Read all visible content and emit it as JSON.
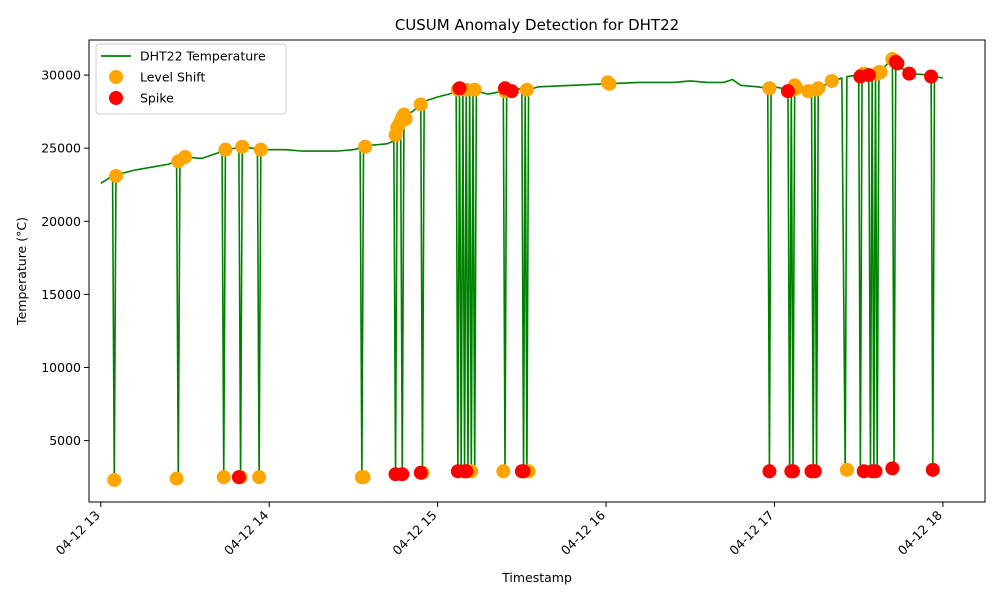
{
  "chart_data": {
    "type": "line",
    "title": "CUSUM Anomaly Detection for DHT22",
    "xlabel": "Timestamp",
    "ylabel": "Temperature (°C)",
    "x_ticks": [
      "04-12 13",
      "04-12 14",
      "04-12 15",
      "04-12 16",
      "04-12 17",
      "04-12 18"
    ],
    "y_ticks": [
      5000,
      10000,
      15000,
      20000,
      25000,
      30000
    ],
    "xlim_hours": [
      12.93,
      18.25
    ],
    "ylim": [
      800,
      32400
    ],
    "grid": false,
    "legend_position": "top-left",
    "legend": {
      "line_label": "DHT22 Temperature",
      "level_shift_label": "Level Shift",
      "spike_label": "Spike"
    },
    "colors": {
      "line": "#008000",
      "level_shift": "#ffa500",
      "spike": "#ff0000"
    },
    "temperature_series": {
      "name": "DHT22 Temperature",
      "hours": [
        13.0,
        13.07,
        13.08,
        13.09,
        13.1,
        13.2,
        13.3,
        13.4,
        13.45,
        13.46,
        13.47,
        13.5,
        13.6,
        13.7,
        13.72,
        13.73,
        13.74,
        13.8,
        13.82,
        13.83,
        13.84,
        13.9,
        13.93,
        13.94,
        13.95,
        14.0,
        14.1,
        14.2,
        14.3,
        14.4,
        14.5,
        14.54,
        14.55,
        14.56,
        14.6,
        14.7,
        14.74,
        14.75,
        14.76,
        14.78,
        14.79,
        14.8,
        14.85,
        14.9,
        14.91,
        14.92,
        15.0,
        15.1,
        15.11,
        15.12,
        15.13,
        15.14,
        15.15,
        15.16,
        15.17,
        15.18,
        15.19,
        15.2,
        15.21,
        15.22,
        15.23,
        15.3,
        15.39,
        15.4,
        15.41,
        15.44,
        15.5,
        15.51,
        15.52,
        15.53,
        15.54,
        15.6,
        15.8,
        16.0,
        16.2,
        16.4,
        16.5,
        16.6,
        16.7,
        16.75,
        16.8,
        16.9,
        16.96,
        16.97,
        16.98,
        17.0,
        17.08,
        17.09,
        17.1,
        17.11,
        17.12,
        17.2,
        17.22,
        17.23,
        17.24,
        17.25,
        17.26,
        17.35,
        17.4,
        17.42,
        17.43,
        17.5,
        17.51,
        17.52,
        17.53,
        17.56,
        17.57,
        17.58,
        17.59,
        17.6,
        17.61,
        17.62,
        17.7,
        17.71,
        17.72,
        17.73,
        17.8,
        17.93,
        17.94,
        17.95,
        18.0
      ],
      "values": [
        22600,
        23100,
        2300,
        23100,
        23200,
        23500,
        23700,
        23900,
        24100,
        2400,
        24200,
        24400,
        24300,
        24700,
        24900,
        2500,
        24900,
        25000,
        25100,
        2500,
        25100,
        25000,
        24900,
        2500,
        24900,
        24900,
        24900,
        24800,
        24800,
        24800,
        24900,
        25000,
        2500,
        25100,
        25200,
        25300,
        25500,
        2700,
        26500,
        27300,
        2700,
        27200,
        27500,
        28000,
        2800,
        28200,
        28500,
        28800,
        28700,
        2900,
        29000,
        2900,
        29100,
        2900,
        29100,
        2900,
        28900,
        2900,
        28900,
        2900,
        28900,
        28700,
        28900,
        2900,
        28900,
        28900,
        29100,
        2900,
        29000,
        2900,
        29000,
        29200,
        29300,
        29400,
        29500,
        29500,
        29600,
        29500,
        29500,
        29700,
        29300,
        29200,
        29100,
        2900,
        29100,
        29200,
        29000,
        2900,
        29100,
        2900,
        29200,
        29000,
        29000,
        2900,
        29000,
        2900,
        29100,
        29600,
        29800,
        3000,
        29900,
        30000,
        3000,
        30000,
        29900,
        30000,
        3000,
        30100,
        3000,
        30100,
        3000,
        30200,
        31100,
        3100,
        30900,
        30700,
        30100,
        30000,
        3000,
        29900,
        29800
      ]
    },
    "level_shift_points": {
      "name": "Level Shift",
      "hours": [
        13.08,
        13.09,
        13.45,
        13.46,
        13.5,
        13.73,
        13.74,
        13.83,
        13.84,
        13.94,
        13.95,
        14.55,
        14.56,
        14.57,
        14.75,
        14.76,
        14.77,
        14.78,
        14.79,
        14.8,
        14.81,
        14.9,
        14.91,
        15.12,
        15.17,
        15.2,
        15.22,
        15.39,
        15.4,
        15.53,
        15.54,
        16.01,
        16.02,
        16.97,
        17.11,
        17.12,
        17.13,
        17.2,
        17.22,
        17.25,
        17.26,
        17.34,
        17.43,
        17.52,
        17.53,
        17.61,
        17.62,
        17.63,
        17.7,
        17.71
      ],
      "values": [
        2300,
        23100,
        2400,
        24100,
        24400,
        2500,
        24900,
        2500,
        25100,
        2500,
        24900,
        2500,
        2500,
        25100,
        25900,
        26400,
        26600,
        26800,
        27100,
        27300,
        27000,
        28000,
        2800,
        29000,
        29000,
        2900,
        29000,
        2900,
        28900,
        29000,
        2900,
        29500,
        29400,
        29100,
        29000,
        29300,
        29100,
        28900,
        2900,
        29000,
        29100,
        29600,
        3000,
        30000,
        30100,
        30100,
        30200,
        30200,
        31100,
        31000
      ]
    },
    "spike_points": {
      "name": "Spike",
      "hours": [
        13.82,
        14.75,
        14.79,
        14.9,
        15.12,
        15.13,
        15.16,
        15.17,
        15.4,
        15.44,
        15.5,
        15.51,
        16.97,
        17.08,
        17.11,
        17.1,
        17.22,
        17.24,
        17.51,
        17.53,
        17.56,
        17.58,
        17.6,
        17.7,
        17.72,
        17.73,
        17.8,
        17.93,
        17.94
      ],
      "values": [
        2500,
        2700,
        2700,
        2800,
        2900,
        29100,
        2900,
        2900,
        29100,
        28900,
        2900,
        2900,
        2900,
        28900,
        2900,
        2900,
        2900,
        2900,
        29900,
        2900,
        30000,
        2900,
        2900,
        3100,
        30900,
        30800,
        30100,
        29900,
        3000
      ]
    }
  }
}
